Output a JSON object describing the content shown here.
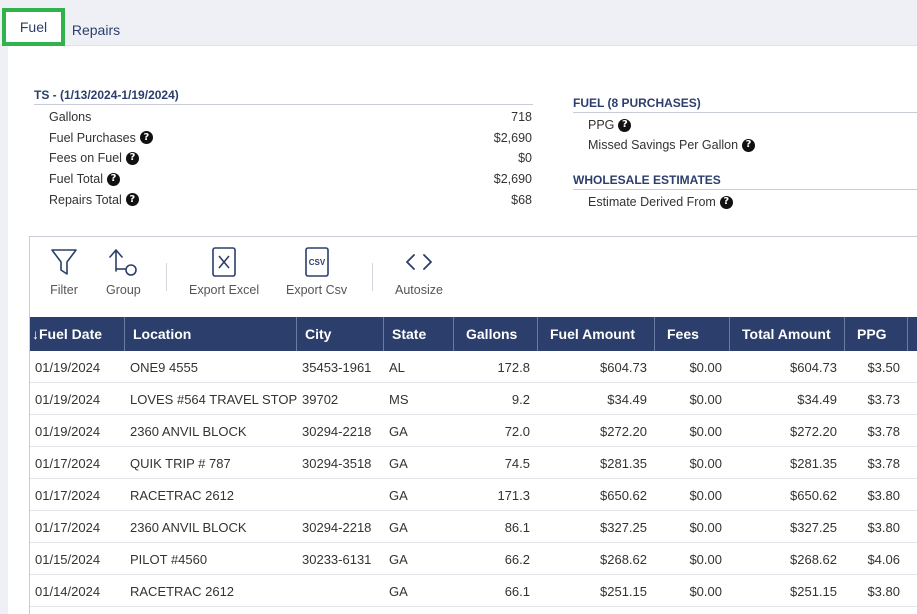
{
  "tabs": {
    "fuel": "Fuel",
    "repairs": "Repairs"
  },
  "summary": {
    "title": "TS - (1/13/2024-1/19/2024)",
    "rows": [
      {
        "label": "Gallons",
        "value": "718",
        "help": false
      },
      {
        "label": "Fuel Purchases",
        "value": "$2,690",
        "help": true
      },
      {
        "label": "Fees on Fuel",
        "value": "$0",
        "help": true
      },
      {
        "label": "Fuel Total",
        "value": "$2,690",
        "help": true
      },
      {
        "label": "Repairs Total",
        "value": "$68",
        "help": true
      }
    ]
  },
  "fuel_section": {
    "title": "FUEL (8 PURCHASES)",
    "rows": [
      "PPG",
      "Missed Savings Per Gallon"
    ]
  },
  "wholesale": {
    "title": "WHOLESALE ESTIMATES",
    "rows": [
      "Estimate Derived From"
    ]
  },
  "help_glyph": "?",
  "toolbar": {
    "filter": "Filter",
    "group": "Group",
    "export_excel": "Export Excel",
    "export_csv": "Export Csv",
    "csv_icon_text": "CSV",
    "autosize": "Autosize"
  },
  "columns": [
    "↓Fuel Date",
    "Location",
    "City",
    "State",
    "Gallons",
    "Fuel Amount",
    "Fees",
    "Total Amount",
    "PPG"
  ],
  "rows": [
    [
      "01/19/2024",
      "ONE9 4555",
      "35453-1961",
      "AL",
      "172.8",
      "$604.73",
      "$0.00",
      "$604.73",
      "$3.50"
    ],
    [
      "01/19/2024",
      "LOVES #564 TRAVEL STOP",
      "39702",
      "MS",
      "9.2",
      "$34.49",
      "$0.00",
      "$34.49",
      "$3.73"
    ],
    [
      "01/19/2024",
      "2360 ANVIL BLOCK",
      "30294-2218",
      "GA",
      "72.0",
      "$272.20",
      "$0.00",
      "$272.20",
      "$3.78"
    ],
    [
      "01/17/2024",
      "QUIK TRIP # 787",
      "30294-3518",
      "GA",
      "74.5",
      "$281.35",
      "$0.00",
      "$281.35",
      "$3.78"
    ],
    [
      "01/17/2024",
      "RACETRAC 2612",
      "",
      "GA",
      "171.3",
      "$650.62",
      "$0.00",
      "$650.62",
      "$3.80"
    ],
    [
      "01/17/2024",
      "2360 ANVIL BLOCK",
      "30294-2218",
      "GA",
      "86.1",
      "$327.25",
      "$0.00",
      "$327.25",
      "$3.80"
    ],
    [
      "01/15/2024",
      "PILOT #4560",
      "30233-6131",
      "GA",
      "66.2",
      "$268.62",
      "$0.00",
      "$268.62",
      "$4.06"
    ],
    [
      "01/14/2024",
      "RACETRAC 2612",
      "",
      "GA",
      "66.1",
      "$251.15",
      "$0.00",
      "$251.15",
      "$3.80"
    ]
  ]
}
